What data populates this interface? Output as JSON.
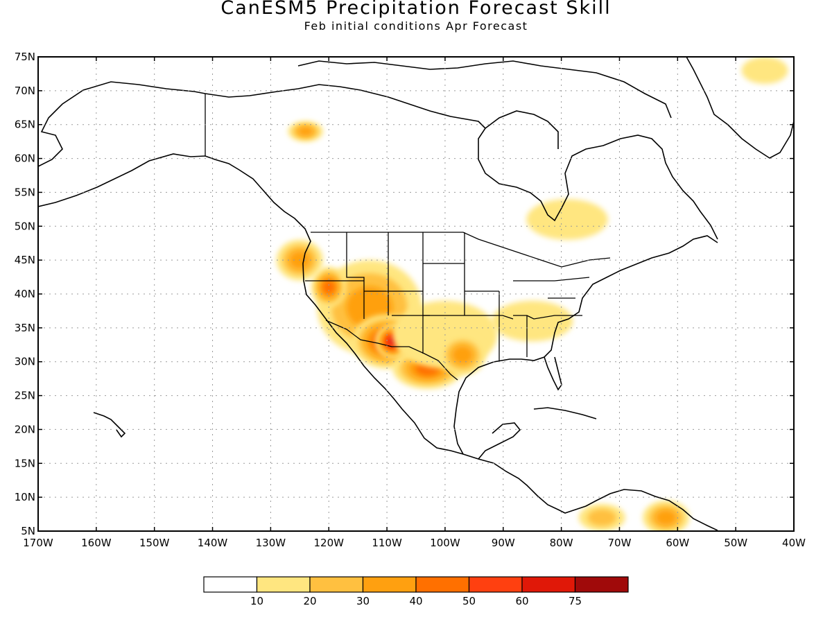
{
  "title": "CanESM5 Precipitation Forecast Skill",
  "subtitle": "Feb initial conditions  Apr Forecast",
  "map": {
    "lon_range": [
      -170,
      -40
    ],
    "lat_range": [
      5,
      75
    ],
    "lat_labels": [
      "75N",
      "70N",
      "65N",
      "60N",
      "55N",
      "50N",
      "45N",
      "40N",
      "35N",
      "30N",
      "25N",
      "20N",
      "15N",
      "10N",
      "5N"
    ],
    "lon_labels": [
      "170W",
      "160W",
      "150W",
      "140W",
      "130W",
      "120W",
      "110W",
      "100W",
      "90W",
      "80W",
      "70W",
      "60W",
      "50W",
      "40W"
    ],
    "lat_values": [
      75,
      70,
      65,
      60,
      55,
      50,
      45,
      40,
      35,
      30,
      25,
      20,
      15,
      10,
      5
    ],
    "lon_values": [
      -170,
      -160,
      -150,
      -140,
      -130,
      -120,
      -110,
      -100,
      -90,
      -80,
      -70,
      -60,
      -50,
      -40
    ],
    "gridlines": "dotted"
  },
  "colorbar": {
    "colors": [
      "#ffffff",
      "#ffe680",
      "#ffc040",
      "#ffa010",
      "#ff7000",
      "#ff4010",
      "#e01808",
      "#a00a0a"
    ],
    "labels": [
      "10",
      "20",
      "30",
      "40",
      "50",
      "60",
      "75"
    ]
  },
  "skill_regions": [
    {
      "lon": -113,
      "lat": 38,
      "rx": 9,
      "ry": 7,
      "level": 3
    },
    {
      "lon": -110,
      "lat": 33,
      "rx": 6,
      "ry": 4,
      "level": 5
    },
    {
      "lon": -109,
      "lat": 33,
      "rx": 3,
      "ry": 2.5,
      "level": 6
    },
    {
      "lon": -120,
      "lat": 41,
      "rx": 3,
      "ry": 3,
      "level": 4
    },
    {
      "lon": -103,
      "lat": 29,
      "rx": 6,
      "ry": 3,
      "level": 4
    },
    {
      "lon": -100,
      "lat": 34,
      "rx": 9,
      "ry": 5,
      "level": 1
    },
    {
      "lon": -97,
      "lat": 31,
      "rx": 4,
      "ry": 3,
      "level": 3
    },
    {
      "lon": -85,
      "lat": 36,
      "rx": 7,
      "ry": 3,
      "level": 1
    },
    {
      "lon": -79,
      "lat": 51,
      "rx": 7,
      "ry": 3,
      "level": 1
    },
    {
      "lon": -124,
      "lat": 64,
      "rx": 3,
      "ry": 1.5,
      "level": 3
    },
    {
      "lon": -62,
      "lat": 7,
      "rx": 4,
      "ry": 2.5,
      "level": 3
    },
    {
      "lon": -73,
      "lat": 7,
      "rx": 4,
      "ry": 2,
      "level": 2
    },
    {
      "lon": -45,
      "lat": 73,
      "rx": 4,
      "ry": 2,
      "level": 1
    },
    {
      "lon": -125,
      "lat": 45,
      "rx": 4,
      "ry": 3,
      "level": 3
    }
  ]
}
